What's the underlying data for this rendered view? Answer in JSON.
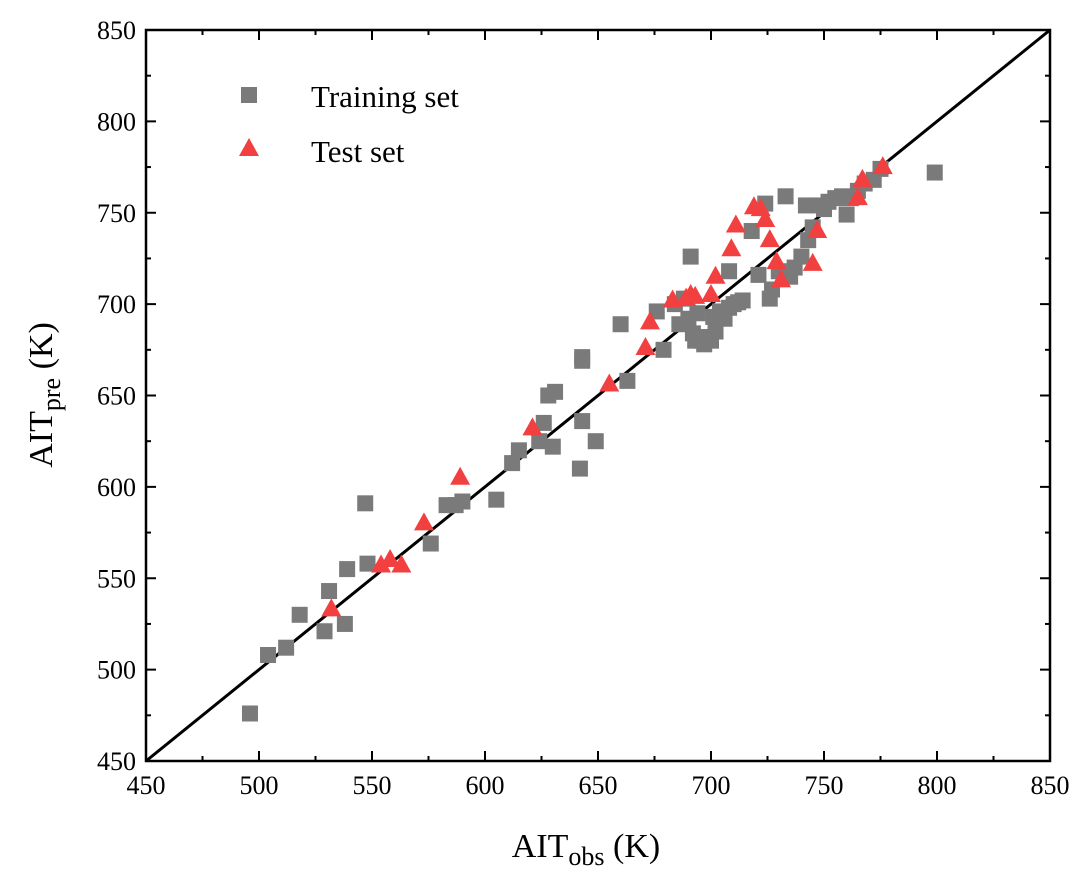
{
  "chart_data": {
    "type": "scatter",
    "xlabel": {
      "main": "AIT",
      "sub": "obs",
      "unit": " (K)"
    },
    "ylabel": {
      "main": "AIT",
      "sub": "pre",
      "unit": " (K)"
    },
    "xlim": [
      450,
      850
    ],
    "ylim": [
      450,
      850
    ],
    "xticks": [
      450,
      500,
      550,
      600,
      650,
      700,
      750,
      800,
      850
    ],
    "yticks": [
      450,
      500,
      550,
      600,
      650,
      700,
      750,
      800,
      850
    ],
    "grid": false,
    "legend_position": "top-left",
    "reference_line": {
      "from": [
        450,
        450
      ],
      "to": [
        850,
        850
      ]
    },
    "colors": {
      "training": "#7a7a7a",
      "test": "#f24040",
      "line": "#000000"
    },
    "series": [
      {
        "name": "Training set",
        "marker": "square",
        "points": [
          [
            496,
            476
          ],
          [
            504,
            508
          ],
          [
            512,
            512
          ],
          [
            518,
            530
          ],
          [
            529,
            521
          ],
          [
            531,
            543
          ],
          [
            538,
            525
          ],
          [
            539,
            555
          ],
          [
            547,
            591
          ],
          [
            548,
            558
          ],
          [
            576,
            569
          ],
          [
            583,
            590
          ],
          [
            587,
            590
          ],
          [
            590,
            592
          ],
          [
            605,
            593
          ],
          [
            612,
            613
          ],
          [
            615,
            620
          ],
          [
            624,
            625
          ],
          [
            626,
            635
          ],
          [
            628,
            650
          ],
          [
            630,
            622
          ],
          [
            631,
            652
          ],
          [
            642,
            610
          ],
          [
            643,
            636
          ],
          [
            643,
            669
          ],
          [
            643,
            671
          ],
          [
            649,
            625
          ],
          [
            660,
            689
          ],
          [
            663,
            658
          ],
          [
            676,
            696
          ],
          [
            679,
            675
          ],
          [
            684,
            700
          ],
          [
            686,
            689
          ],
          [
            688,
            703
          ],
          [
            690,
            692
          ],
          [
            691,
            726
          ],
          [
            692,
            684
          ],
          [
            693,
            680
          ],
          [
            694,
            695
          ],
          [
            696,
            680
          ],
          [
            697,
            678
          ],
          [
            698,
            682
          ],
          [
            700,
            680
          ],
          [
            701,
            693
          ],
          [
            702,
            685
          ],
          [
            704,
            696
          ],
          [
            706,
            692
          ],
          [
            708,
            698
          ],
          [
            708,
            718
          ],
          [
            710,
            700
          ],
          [
            712,
            701
          ],
          [
            714,
            702
          ],
          [
            718,
            740
          ],
          [
            721,
            716
          ],
          [
            724,
            755
          ],
          [
            726,
            703
          ],
          [
            727,
            708
          ],
          [
            730,
            718
          ],
          [
            733,
            759
          ],
          [
            735,
            715
          ],
          [
            737,
            720
          ],
          [
            740,
            726
          ],
          [
            742,
            754
          ],
          [
            743,
            735
          ],
          [
            745,
            742
          ],
          [
            748,
            754
          ],
          [
            750,
            752
          ],
          [
            752,
            756
          ],
          [
            755,
            758
          ],
          [
            758,
            759
          ],
          [
            760,
            749
          ],
          [
            762,
            758
          ],
          [
            765,
            762
          ],
          [
            768,
            766
          ],
          [
            772,
            768
          ],
          [
            775,
            774
          ],
          [
            799,
            772
          ]
        ]
      },
      {
        "name": "Test set",
        "marker": "triangle",
        "points": [
          [
            532,
            533
          ],
          [
            554,
            557
          ],
          [
            558,
            560
          ],
          [
            563,
            557
          ],
          [
            573,
            580
          ],
          [
            589,
            605
          ],
          [
            621,
            632
          ],
          [
            655,
            656
          ],
          [
            671,
            676
          ],
          [
            673,
            690
          ],
          [
            683,
            702
          ],
          [
            689,
            703
          ],
          [
            691,
            705
          ],
          [
            693,
            704
          ],
          [
            700,
            705
          ],
          [
            702,
            715
          ],
          [
            709,
            730
          ],
          [
            711,
            743
          ],
          [
            719,
            753
          ],
          [
            722,
            752
          ],
          [
            724,
            746
          ],
          [
            726,
            735
          ],
          [
            729,
            723
          ],
          [
            731,
            713
          ],
          [
            745,
            722
          ],
          [
            747,
            740
          ],
          [
            765,
            758
          ],
          [
            767,
            768
          ],
          [
            776,
            775
          ]
        ]
      }
    ]
  }
}
